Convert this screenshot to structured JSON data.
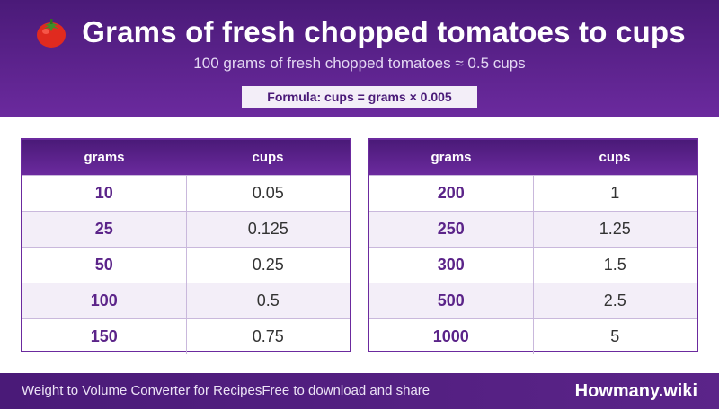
{
  "header": {
    "title": "Grams of fresh chopped tomatoes to cups",
    "subtitle": "100 grams of fresh chopped tomatoes ≈ 0.5 cups",
    "formula": "Formula: cups = grams × 0.005",
    "icon": "tomato-icon"
  },
  "tables": [
    {
      "headers": [
        "grams",
        "cups"
      ],
      "rows": [
        [
          "10",
          "0.05"
        ],
        [
          "25",
          "0.125"
        ],
        [
          "50",
          "0.25"
        ],
        [
          "100",
          "0.5"
        ],
        [
          "150",
          "0.75"
        ]
      ]
    },
    {
      "headers": [
        "grams",
        "cups"
      ],
      "rows": [
        [
          "200",
          "1"
        ],
        [
          "250",
          "1.25"
        ],
        [
          "300",
          "1.5"
        ],
        [
          "500",
          "2.5"
        ],
        [
          "1000",
          "5"
        ]
      ]
    }
  ],
  "footer": {
    "left_text": "Weight to Volume Converter for RecipesFree to download and share",
    "brand": "Howmany.wiki"
  },
  "colors": {
    "primary": "#5b2489",
    "header_bg": "#6b2a9e",
    "row_alt": "#f3eef8"
  }
}
